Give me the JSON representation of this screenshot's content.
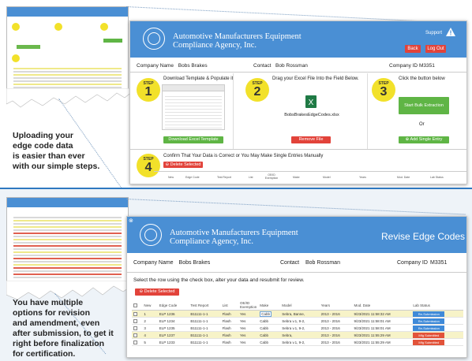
{
  "top_panel": {
    "caption": [
      "Uploading your",
      "edge code data",
      "is easier than ever",
      "with our simple steps."
    ],
    "app": {
      "org_name": [
        "Automotive Manufacturers Equipment",
        "Compliance Agency, Inc."
      ],
      "support_label": "Support",
      "back_label": "Back",
      "logout_label": "Log Out",
      "company_name_label": "Company Name",
      "company_name_value": "Bobs Brakes",
      "contact_label": "Contact",
      "contact_value": "Bob Rossman",
      "company_id_label": "Company ID",
      "company_id_value": "M3351",
      "steps": [
        {
          "label": "STEP",
          "number": "1",
          "title": "Download Template & Populate it",
          "button": "Download Excel Template"
        },
        {
          "label": "STEP",
          "number": "2",
          "title": "Drag your Excel File Into the Field Below.",
          "file_name": "BobsBrakesEdgeCodes.xlsx",
          "button": "Remove File"
        },
        {
          "label": "STEP",
          "number": "3",
          "title": "Click the button below",
          "button": "Start Bulk Extraction",
          "or_label": "Or",
          "button2": "Add Single Entry"
        }
      ],
      "step4": {
        "label": "STEP",
        "number": "4",
        "title": "Confirm That Your Data is Correct or You May Make Single Entries Manually",
        "button": "Delete Selected"
      },
      "columns": [
        "New",
        "Edge Code",
        "Test Report",
        "List",
        "OE/ID Exemption",
        "Make",
        "Model",
        "Years",
        "Mod. Date",
        "Lab Status"
      ]
    }
  },
  "bottom_panel": {
    "caption": [
      "You have multiple",
      "options for revision",
      "and amendment, even",
      "after submission, to get it",
      "right before finalization",
      "for certification."
    ],
    "app": {
      "org_name": [
        "Automotive Manufacturers Equipment",
        "Compliance Agency, Inc."
      ],
      "page_title": "Revise Edge Codes",
      "company_name_label": "Company Name",
      "company_name_value": "Bobs Brakes",
      "contact_label": "Contact",
      "contact_value": "Bob Rossman",
      "company_id_label": "Company ID",
      "company_id_value": "M3351",
      "instructions": "Select the row using the check box, alter your data and resubmit for review.",
      "delete_button": "Delete Selected",
      "columns": [
        "New",
        "Edge Code",
        "Test Report",
        "List",
        "OE/ID Exemption",
        "Make",
        "Model",
        "Years",
        "Mod. Date",
        "Lab Status"
      ],
      "rows": [
        {
          "num": "1",
          "edge": "ELP 1236",
          "report": "B11111-1-1",
          "list": "Flash",
          "exempt": "Yes",
          "make": "Cabb",
          "model": "Sebra, Banne,",
          "years": "2013 - 2016",
          "date": "9/23/2021 11:58:32 AM",
          "status": "Re-Submission",
          "status_color": "blue",
          "highlight": true
        },
        {
          "num": "2",
          "edge": "ELP 1234",
          "report": "B11111-1-1",
          "list": "Flash",
          "exempt": "Yes",
          "make": "Cabb",
          "model": "Sebra v.1, 9-2,",
          "years": "2013 - 2016",
          "date": "9/23/2021 11:58:01 AM",
          "status": "Re-Submission",
          "status_color": "blue",
          "highlight": false
        },
        {
          "num": "3",
          "edge": "ELP 1235",
          "report": "B11111-1-1",
          "list": "Flash",
          "exempt": "Yes",
          "make": "Cabb",
          "model": "Sebra v.1, 9-2,",
          "years": "2013 - 2016",
          "date": "9/23/2021 11:58:01 AM",
          "status": "Re-Submission",
          "status_color": "blue",
          "highlight": false
        },
        {
          "num": "4",
          "edge": "ELP 1237",
          "report": "B11111-1-1",
          "list": "Flash",
          "exempt": "Yes",
          "make": "Cabb",
          "model": "Sebra,",
          "years": "2013 - 2016",
          "date": "9/23/2021 11:55:29 AM",
          "status": "Mfg Submitted",
          "status_color": "red",
          "highlight": true
        },
        {
          "num": "5",
          "edge": "ELP 1233",
          "report": "B11111-1-1",
          "list": "Flash",
          "exempt": "Yes",
          "make": "Cabb",
          "model": "Sebra v.1, 9-2,",
          "years": "2013 - 2016",
          "date": "9/23/2021 11:55:29 AM",
          "status": "Mfg Submitted",
          "status_color": "red",
          "highlight": false
        }
      ]
    }
  },
  "colors": {
    "header_blue": "#4a8fd4",
    "step_yellow": "#f2e12a",
    "button_green": "#5fb545",
    "button_red": "#e2433a"
  }
}
